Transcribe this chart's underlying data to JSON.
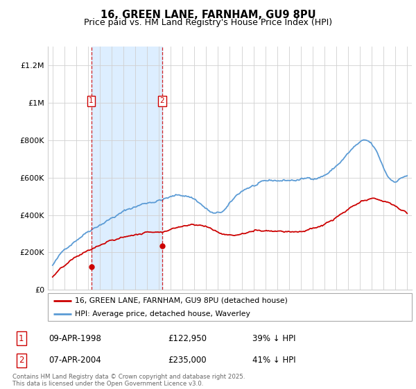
{
  "title": "16, GREEN LANE, FARNHAM, GU9 8PU",
  "subtitle": "Price paid vs. HM Land Registry's House Price Index (HPI)",
  "ylim": [
    0,
    1300000
  ],
  "yticks": [
    0,
    200000,
    400000,
    600000,
    800000,
    1000000,
    1200000
  ],
  "ytick_labels": [
    "£0",
    "£200K",
    "£400K",
    "£600K",
    "£800K",
    "£1M",
    "£1.2M"
  ],
  "xlim_start": 1994.6,
  "xlim_end": 2025.4,
  "transaction1_year": 1998.27,
  "transaction1_price": 122950,
  "transaction2_year": 2004.27,
  "transaction2_price": 235000,
  "marker_y": 1010000,
  "legend_red": "16, GREEN LANE, FARNHAM, GU9 8PU (detached house)",
  "legend_blue": "HPI: Average price, detached house, Waverley",
  "table_row1": [
    "1",
    "09-APR-1998",
    "£122,950",
    "39% ↓ HPI"
  ],
  "table_row2": [
    "2",
    "07-APR-2004",
    "£235,000",
    "41% ↓ HPI"
  ],
  "footnote": "Contains HM Land Registry data © Crown copyright and database right 2025.\nThis data is licensed under the Open Government Licence v3.0.",
  "red_color": "#cc0000",
  "blue_color": "#5b9bd5",
  "shade_color": "#ddeeff",
  "grid_color": "#d0d0d0",
  "background_color": "#ffffff",
  "title_fontsize": 10.5,
  "subtitle_fontsize": 9
}
